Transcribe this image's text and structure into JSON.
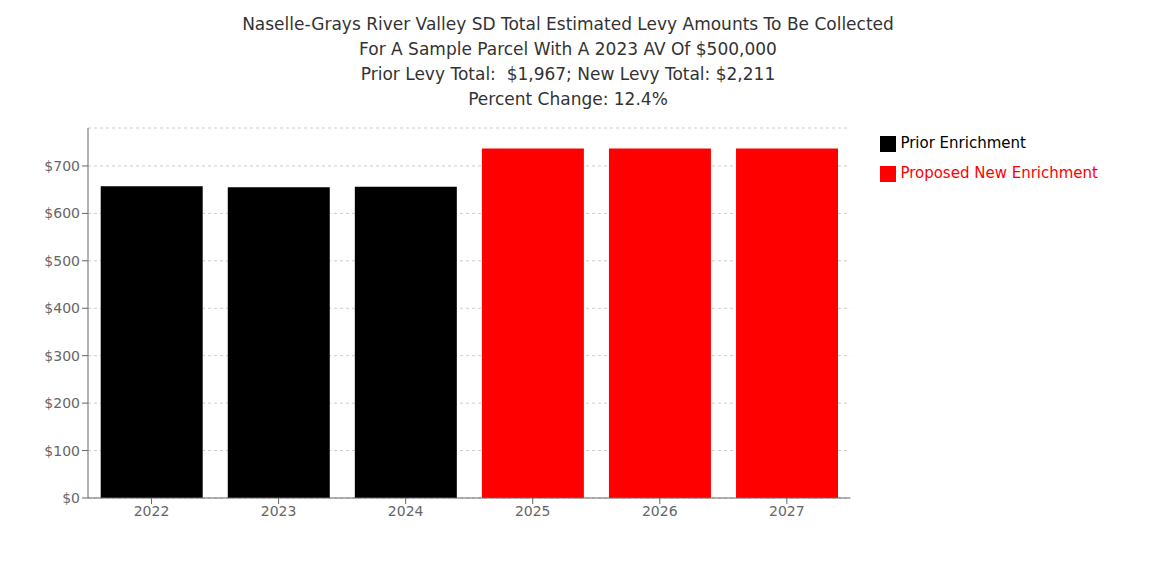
{
  "chart_data": {
    "type": "bar",
    "title": "Naselle-Grays River Valley SD Total Estimated Levy Amounts To Be Collected\nFor A Sample Parcel With A 2023 AV Of $500,000\nPrior Levy Total:  $1,967; New Levy Total: $2,211\nPercent Change: 12.4%",
    "categories": [
      "2022",
      "2023",
      "2024",
      "2025",
      "2026",
      "2027"
    ],
    "series": [
      {
        "name": "Prior Enrichment",
        "color": "#000000",
        "values": [
          657,
          655,
          656,
          null,
          null,
          null
        ]
      },
      {
        "name": "Proposed New Enrichment",
        "color": "#ff0000",
        "values": [
          null,
          null,
          null,
          737,
          737,
          737
        ]
      }
    ],
    "ylim": [
      0,
      780
    ],
    "yticks": [
      {
        "value": 0,
        "label": "$0"
      },
      {
        "value": 100,
        "label": "$100"
      },
      {
        "value": 200,
        "label": "$200"
      },
      {
        "value": 300,
        "label": "$300"
      },
      {
        "value": 400,
        "label": "$400"
      },
      {
        "value": 500,
        "label": "$500"
      },
      {
        "value": 600,
        "label": "$600"
      },
      {
        "value": 700,
        "label": "$700"
      }
    ],
    "grid": true,
    "legend": "right"
  }
}
